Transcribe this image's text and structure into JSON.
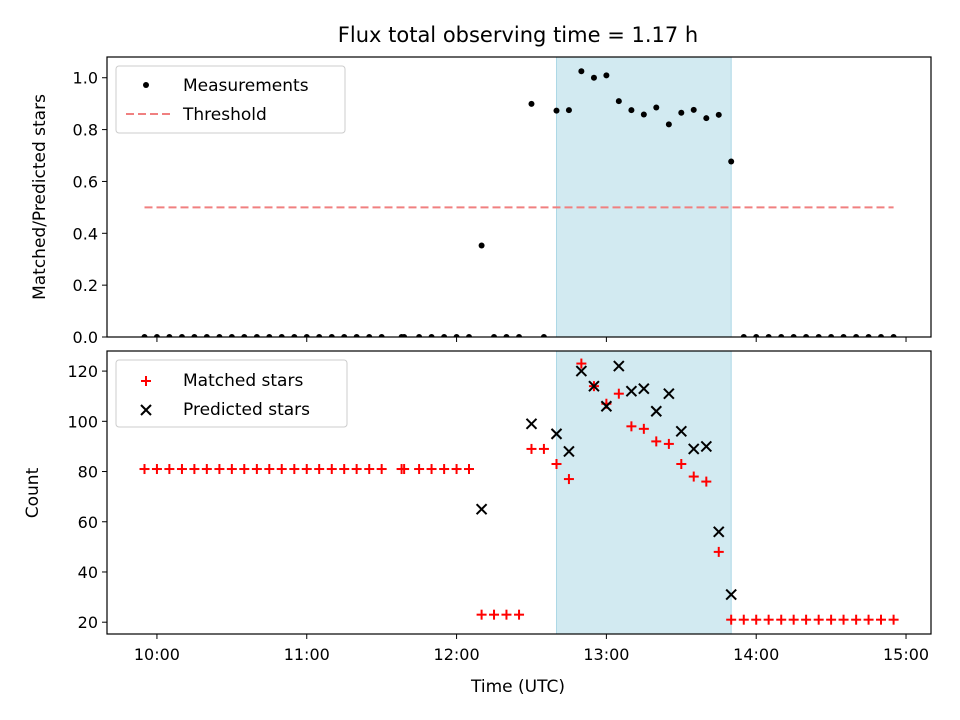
{
  "title": "Flux total observing time = 1.17 h",
  "colors": {
    "highlight": "#add8e6",
    "threshold": "#f08080",
    "matched": "#ff0000",
    "predicted": "#000000",
    "measurement": "#000000"
  },
  "chart_data": [
    {
      "type": "scatter",
      "panel": "top",
      "ylabel": "Matched/Predicted stars",
      "xlabel": "",
      "xlim_hours": [
        9.6667,
        15.1667
      ],
      "ylim": [
        0,
        1.08
      ],
      "yticks": [
        0.0,
        0.2,
        0.4,
        0.6,
        0.8,
        1.0
      ],
      "ytick_labels": [
        "0.0",
        "0.2",
        "0.4",
        "0.6",
        "0.8",
        "1.0"
      ],
      "highlight_span_hours": [
        12.667,
        13.833
      ],
      "legend": {
        "placement": "upper-left",
        "entries": [
          "Measurements",
          "Threshold"
        ]
      },
      "threshold": {
        "name": "Threshold",
        "x_hours": [
          9.917,
          14.917
        ],
        "y": 0.5,
        "style": "dashed"
      },
      "series": [
        {
          "name": "Measurements",
          "x_hours": [
            9.917,
            10.0,
            10.083,
            10.167,
            10.25,
            10.333,
            10.417,
            10.5,
            10.583,
            10.667,
            10.75,
            10.833,
            10.917,
            11.0,
            11.083,
            11.167,
            11.25,
            11.333,
            11.417,
            11.5,
            11.633,
            11.65,
            11.75,
            11.833,
            11.917,
            12.0,
            12.083,
            12.167,
            12.25,
            12.333,
            12.417,
            12.5,
            12.583,
            12.667,
            12.75,
            12.833,
            12.917,
            13.0,
            13.083,
            13.167,
            13.25,
            13.333,
            13.417,
            13.5,
            13.583,
            13.667,
            13.75,
            13.833,
            13.917,
            14.0,
            14.083,
            14.167,
            14.25,
            14.333,
            14.417,
            14.5,
            14.583,
            14.667,
            14.75,
            14.833,
            14.917
          ],
          "y": [
            0.0,
            0.0,
            0.0,
            0.0,
            0.0,
            0.0,
            0.0,
            0.0,
            0.0,
            0.0,
            0.0,
            0.0,
            0.0,
            0.0,
            0.0,
            0.0,
            0.0,
            0.0,
            0.0,
            0.0,
            0.0,
            0.0,
            0.0,
            0.0,
            0.0,
            0.0,
            0.0,
            0.353,
            0.0,
            0.0,
            0.0,
            0.899,
            0.0,
            0.873,
            0.875,
            1.025,
            1.0,
            1.009,
            0.91,
            0.875,
            0.858,
            0.885,
            0.82,
            0.865,
            0.876,
            0.844,
            0.857,
            0.677,
            0.0,
            0.0,
            0.0,
            0.0,
            0.0,
            0.0,
            0.0,
            0.0,
            0.0,
            0.0,
            0.0,
            0.0,
            0.0
          ]
        }
      ]
    },
    {
      "type": "scatter",
      "panel": "bottom",
      "ylabel": "Count",
      "xlabel": "Time (UTC)",
      "xlim_hours": [
        9.6667,
        15.1667
      ],
      "ylim": [
        15.3,
        128
      ],
      "yticks": [
        20,
        40,
        60,
        80,
        100,
        120
      ],
      "ytick_labels": [
        "20",
        "40",
        "60",
        "80",
        "100",
        "120"
      ],
      "xticks_hours": [
        10,
        11,
        12,
        13,
        14,
        15
      ],
      "xtick_labels": [
        "10:00",
        "11:00",
        "12:00",
        "13:00",
        "14:00",
        "15:00"
      ],
      "highlight_span_hours": [
        12.667,
        13.833
      ],
      "legend": {
        "placement": "upper-left",
        "entries": [
          "Matched stars",
          "Predicted stars"
        ]
      },
      "series": [
        {
          "name": "Matched stars",
          "marker": "plus",
          "x_hours": [
            9.917,
            10.0,
            10.083,
            10.167,
            10.25,
            10.333,
            10.417,
            10.5,
            10.583,
            10.667,
            10.75,
            10.833,
            10.917,
            11.0,
            11.083,
            11.167,
            11.25,
            11.333,
            11.417,
            11.5,
            11.633,
            11.65,
            11.75,
            11.833,
            11.917,
            12.0,
            12.083,
            12.167,
            12.25,
            12.333,
            12.417,
            12.5,
            12.583,
            12.667,
            12.75,
            12.833,
            12.917,
            13.0,
            13.083,
            13.167,
            13.25,
            13.333,
            13.417,
            13.5,
            13.583,
            13.667,
            13.75,
            13.833,
            13.917,
            14.0,
            14.083,
            14.167,
            14.25,
            14.333,
            14.417,
            14.5,
            14.583,
            14.667,
            14.75,
            14.833,
            14.917
          ],
          "y": [
            81,
            81,
            81,
            81,
            81,
            81,
            81,
            81,
            81,
            81,
            81,
            81,
            81,
            81,
            81,
            81,
            81,
            81,
            81,
            81,
            81,
            81,
            81,
            81,
            81,
            81,
            81,
            23,
            23,
            23,
            23,
            89,
            89,
            83,
            77,
            123,
            114,
            107,
            111,
            98,
            97,
            92,
            91,
            83,
            78,
            76,
            48,
            21,
            21,
            21,
            21,
            21,
            21,
            21,
            21,
            21,
            21,
            21,
            21,
            21,
            21
          ]
        },
        {
          "name": "Predicted stars",
          "marker": "x",
          "x_hours": [
            12.167,
            12.5,
            12.667,
            12.75,
            12.833,
            12.917,
            13.0,
            13.083,
            13.167,
            13.25,
            13.333,
            13.417,
            13.5,
            13.583,
            13.667,
            13.75,
            13.833
          ],
          "y": [
            65,
            99,
            95,
            88,
            120,
            114,
            106,
            122,
            112,
            113,
            104,
            111,
            96,
            89,
            90,
            56,
            31
          ]
        }
      ]
    }
  ]
}
